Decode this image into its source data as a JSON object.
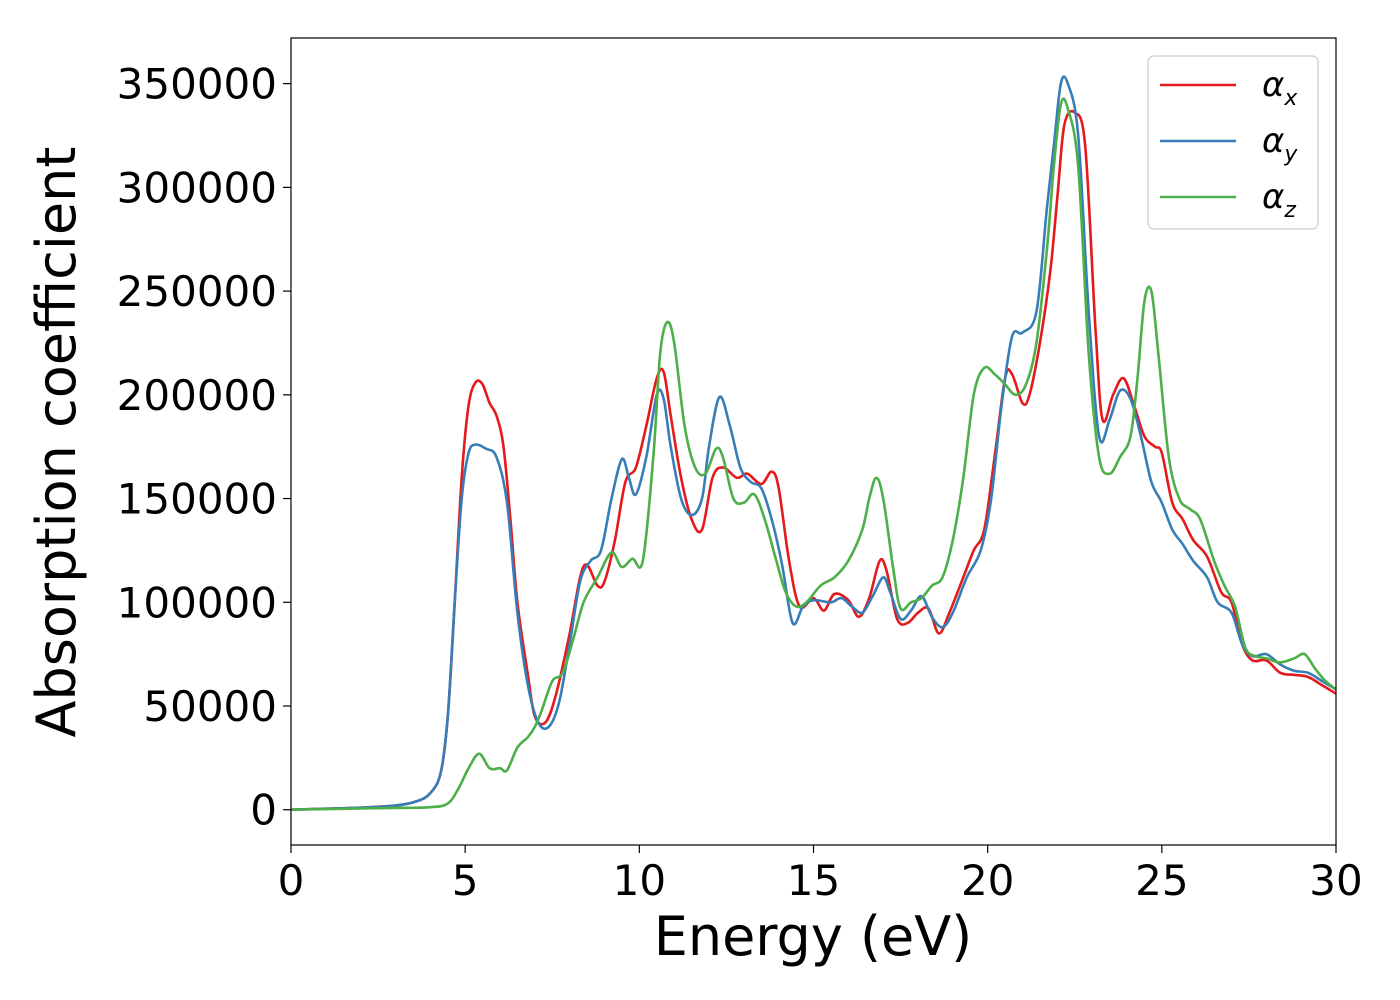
{
  "chart_data": {
    "type": "line",
    "title": "",
    "xlabel": "Energy (eV)",
    "ylabel": "Absorption coefficient",
    "xlim": [
      0,
      30
    ],
    "ylim": [
      -17000,
      372000
    ],
    "xticks": [
      0,
      5,
      10,
      15,
      20,
      25,
      30
    ],
    "xtick_labels": [
      "0",
      "5",
      "10",
      "15",
      "20",
      "25",
      "30"
    ],
    "yticks": [
      0,
      50000,
      100000,
      150000,
      200000,
      250000,
      300000,
      350000
    ],
    "ytick_labels": [
      "0",
      "50000",
      "100000",
      "150000",
      "200000",
      "250000",
      "300000",
      "350000"
    ],
    "grid": false,
    "legend_position": "top-right",
    "series": [
      {
        "name": "α",
        "subscript": "x",
        "color": "#e41a1c",
        "points": [
          [
            0,
            0
          ],
          [
            1,
            500
          ],
          [
            2,
            1000
          ],
          [
            3,
            2000
          ],
          [
            3.6,
            4000
          ],
          [
            4.0,
            8000
          ],
          [
            4.3,
            18000
          ],
          [
            4.5,
            45000
          ],
          [
            4.7,
            100000
          ],
          [
            4.9,
            160000
          ],
          [
            5.1,
            195000
          ],
          [
            5.3,
            206000
          ],
          [
            5.5,
            205000
          ],
          [
            5.7,
            196000
          ],
          [
            5.9,
            190000
          ],
          [
            6.1,
            175000
          ],
          [
            6.3,
            140000
          ],
          [
            6.5,
            100000
          ],
          [
            6.8,
            65000
          ],
          [
            7.0,
            45000
          ],
          [
            7.3,
            42000
          ],
          [
            7.6,
            55000
          ],
          [
            8.0,
            85000
          ],
          [
            8.3,
            112000
          ],
          [
            8.5,
            118000
          ],
          [
            8.8,
            108000
          ],
          [
            9.0,
            110000
          ],
          [
            9.3,
            130000
          ],
          [
            9.6,
            158000
          ],
          [
            9.9,
            165000
          ],
          [
            10.2,
            185000
          ],
          [
            10.5,
            208000
          ],
          [
            10.7,
            211000
          ],
          [
            10.9,
            190000
          ],
          [
            11.2,
            160000
          ],
          [
            11.5,
            140000
          ],
          [
            11.8,
            135000
          ],
          [
            12.1,
            160000
          ],
          [
            12.4,
            165000
          ],
          [
            12.8,
            160000
          ],
          [
            13.1,
            162000
          ],
          [
            13.5,
            157000
          ],
          [
            13.8,
            163000
          ],
          [
            14.0,
            155000
          ],
          [
            14.3,
            120000
          ],
          [
            14.6,
            98000
          ],
          [
            15.0,
            102000
          ],
          [
            15.3,
            96000
          ],
          [
            15.6,
            104000
          ],
          [
            16.0,
            101000
          ],
          [
            16.3,
            93000
          ],
          [
            16.6,
            102000
          ],
          [
            16.9,
            120000
          ],
          [
            17.1,
            115000
          ],
          [
            17.4,
            92000
          ],
          [
            17.7,
            90000
          ],
          [
            18.0,
            95000
          ],
          [
            18.3,
            97000
          ],
          [
            18.6,
            85000
          ],
          [
            18.9,
            95000
          ],
          [
            19.3,
            112000
          ],
          [
            19.6,
            125000
          ],
          [
            19.9,
            135000
          ],
          [
            20.2,
            170000
          ],
          [
            20.5,
            208000
          ],
          [
            20.7,
            210000
          ],
          [
            21.0,
            196000
          ],
          [
            21.2,
            200000
          ],
          [
            21.5,
            225000
          ],
          [
            21.8,
            260000
          ],
          [
            22.0,
            295000
          ],
          [
            22.2,
            330000
          ],
          [
            22.5,
            336000
          ],
          [
            22.8,
            320000
          ],
          [
            23.1,
            230000
          ],
          [
            23.3,
            188000
          ],
          [
            23.6,
            200000
          ],
          [
            23.9,
            208000
          ],
          [
            24.2,
            195000
          ],
          [
            24.5,
            180000
          ],
          [
            24.8,
            175000
          ],
          [
            25.0,
            172000
          ],
          [
            25.3,
            148000
          ],
          [
            25.6,
            140000
          ],
          [
            25.9,
            130000
          ],
          [
            26.3,
            122000
          ],
          [
            26.7,
            105000
          ],
          [
            27.0,
            100000
          ],
          [
            27.3,
            80000
          ],
          [
            27.6,
            72000
          ],
          [
            28.0,
            72000
          ],
          [
            28.4,
            66000
          ],
          [
            28.8,
            65000
          ],
          [
            29.2,
            64000
          ],
          [
            29.6,
            60000
          ],
          [
            30,
            56000
          ]
        ]
      },
      {
        "name": "α",
        "subscript": "y",
        "color": "#377eb8",
        "points": [
          [
            0,
            0
          ],
          [
            1,
            500
          ],
          [
            2,
            1000
          ],
          [
            3,
            2000
          ],
          [
            3.6,
            4000
          ],
          [
            4.0,
            8000
          ],
          [
            4.3,
            18000
          ],
          [
            4.5,
            45000
          ],
          [
            4.7,
            100000
          ],
          [
            4.9,
            150000
          ],
          [
            5.1,
            172000
          ],
          [
            5.3,
            176000
          ],
          [
            5.6,
            174000
          ],
          [
            5.9,
            170000
          ],
          [
            6.2,
            148000
          ],
          [
            6.5,
            95000
          ],
          [
            6.8,
            60000
          ],
          [
            7.1,
            42000
          ],
          [
            7.4,
            40000
          ],
          [
            7.7,
            52000
          ],
          [
            8.0,
            80000
          ],
          [
            8.3,
            110000
          ],
          [
            8.6,
            120000
          ],
          [
            8.9,
            125000
          ],
          [
            9.2,
            150000
          ],
          [
            9.5,
            169000
          ],
          [
            9.7,
            160000
          ],
          [
            9.9,
            152000
          ],
          [
            10.2,
            170000
          ],
          [
            10.5,
            200000
          ],
          [
            10.7,
            198000
          ],
          [
            10.9,
            175000
          ],
          [
            11.2,
            150000
          ],
          [
            11.5,
            142000
          ],
          [
            11.8,
            150000
          ],
          [
            12.0,
            175000
          ],
          [
            12.3,
            199000
          ],
          [
            12.6,
            185000
          ],
          [
            12.9,
            165000
          ],
          [
            13.2,
            158000
          ],
          [
            13.5,
            155000
          ],
          [
            13.8,
            140000
          ],
          [
            14.1,
            118000
          ],
          [
            14.4,
            90000
          ],
          [
            14.7,
            98000
          ],
          [
            15.0,
            101000
          ],
          [
            15.5,
            100000
          ],
          [
            15.8,
            102000
          ],
          [
            16.1,
            98000
          ],
          [
            16.4,
            95000
          ],
          [
            16.7,
            103000
          ],
          [
            17.0,
            112000
          ],
          [
            17.2,
            105000
          ],
          [
            17.5,
            92000
          ],
          [
            17.8,
            96000
          ],
          [
            18.1,
            103000
          ],
          [
            18.4,
            93000
          ],
          [
            18.7,
            88000
          ],
          [
            19.0,
            95000
          ],
          [
            19.4,
            112000
          ],
          [
            19.8,
            125000
          ],
          [
            20.1,
            150000
          ],
          [
            20.4,
            195000
          ],
          [
            20.7,
            228000
          ],
          [
            21.0,
            230000
          ],
          [
            21.4,
            240000
          ],
          [
            21.7,
            290000
          ],
          [
            21.9,
            320000
          ],
          [
            22.1,
            350000
          ],
          [
            22.3,
            350000
          ],
          [
            22.6,
            325000
          ],
          [
            22.9,
            240000
          ],
          [
            23.2,
            180000
          ],
          [
            23.5,
            188000
          ],
          [
            23.8,
            202000
          ],
          [
            24.1,
            198000
          ],
          [
            24.4,
            180000
          ],
          [
            24.7,
            158000
          ],
          [
            25.0,
            148000
          ],
          [
            25.3,
            135000
          ],
          [
            25.6,
            128000
          ],
          [
            25.9,
            120000
          ],
          [
            26.3,
            112000
          ],
          [
            26.6,
            100000
          ],
          [
            27.0,
            95000
          ],
          [
            27.3,
            80000
          ],
          [
            27.6,
            74000
          ],
          [
            28.0,
            75000
          ],
          [
            28.4,
            70000
          ],
          [
            28.8,
            67000
          ],
          [
            29.2,
            66000
          ],
          [
            29.6,
            62000
          ],
          [
            30,
            58000
          ]
        ]
      },
      {
        "name": "α",
        "subscript": "z",
        "color": "#4daf4a",
        "points": [
          [
            0,
            0
          ],
          [
            1,
            300
          ],
          [
            2,
            600
          ],
          [
            3,
            900
          ],
          [
            4.0,
            1200
          ],
          [
            4.5,
            3000
          ],
          [
            4.8,
            10000
          ],
          [
            5.1,
            20000
          ],
          [
            5.4,
            27000
          ],
          [
            5.7,
            20000
          ],
          [
            6.0,
            20000
          ],
          [
            6.2,
            19000
          ],
          [
            6.5,
            30000
          ],
          [
            6.8,
            35000
          ],
          [
            7.0,
            40000
          ],
          [
            7.2,
            48000
          ],
          [
            7.5,
            62000
          ],
          [
            7.8,
            66000
          ],
          [
            8.1,
            82000
          ],
          [
            8.4,
            100000
          ],
          [
            8.8,
            112000
          ],
          [
            9.2,
            124000
          ],
          [
            9.5,
            117000
          ],
          [
            9.8,
            121000
          ],
          [
            10.1,
            120000
          ],
          [
            10.4,
            170000
          ],
          [
            10.6,
            220000
          ],
          [
            10.8,
            235000
          ],
          [
            11.0,
            225000
          ],
          [
            11.3,
            185000
          ],
          [
            11.6,
            165000
          ],
          [
            11.9,
            162000
          ],
          [
            12.2,
            174000
          ],
          [
            12.4,
            170000
          ],
          [
            12.7,
            150000
          ],
          [
            13.0,
            148000
          ],
          [
            13.3,
            152000
          ],
          [
            13.6,
            140000
          ],
          [
            13.9,
            122000
          ],
          [
            14.2,
            105000
          ],
          [
            14.5,
            98000
          ],
          [
            14.8,
            100000
          ],
          [
            15.2,
            108000
          ],
          [
            15.6,
            112000
          ],
          [
            16.0,
            120000
          ],
          [
            16.4,
            135000
          ],
          [
            16.6,
            150000
          ],
          [
            16.8,
            160000
          ],
          [
            17.0,
            150000
          ],
          [
            17.3,
            115000
          ],
          [
            17.5,
            97000
          ],
          [
            17.8,
            100000
          ],
          [
            18.1,
            102000
          ],
          [
            18.4,
            108000
          ],
          [
            18.7,
            112000
          ],
          [
            19.0,
            130000
          ],
          [
            19.3,
            160000
          ],
          [
            19.6,
            200000
          ],
          [
            19.9,
            213000
          ],
          [
            20.2,
            210000
          ],
          [
            20.5,
            205000
          ],
          [
            20.8,
            200000
          ],
          [
            21.1,
            205000
          ],
          [
            21.4,
            225000
          ],
          [
            21.7,
            270000
          ],
          [
            21.9,
            310000
          ],
          [
            22.1,
            340000
          ],
          [
            22.3,
            338000
          ],
          [
            22.6,
            310000
          ],
          [
            22.9,
            220000
          ],
          [
            23.2,
            170000
          ],
          [
            23.5,
            162000
          ],
          [
            23.8,
            170000
          ],
          [
            24.1,
            180000
          ],
          [
            24.3,
            208000
          ],
          [
            24.5,
            245000
          ],
          [
            24.7,
            250000
          ],
          [
            24.9,
            220000
          ],
          [
            25.2,
            170000
          ],
          [
            25.5,
            150000
          ],
          [
            25.8,
            145000
          ],
          [
            26.1,
            140000
          ],
          [
            26.5,
            120000
          ],
          [
            26.8,
            108000
          ],
          [
            27.1,
            98000
          ],
          [
            27.4,
            78000
          ],
          [
            27.7,
            74000
          ],
          [
            28.0,
            73000
          ],
          [
            28.4,
            71000
          ],
          [
            28.8,
            73000
          ],
          [
            29.1,
            75000
          ],
          [
            29.4,
            68000
          ],
          [
            29.7,
            62000
          ],
          [
            30,
            58000
          ]
        ]
      }
    ]
  }
}
